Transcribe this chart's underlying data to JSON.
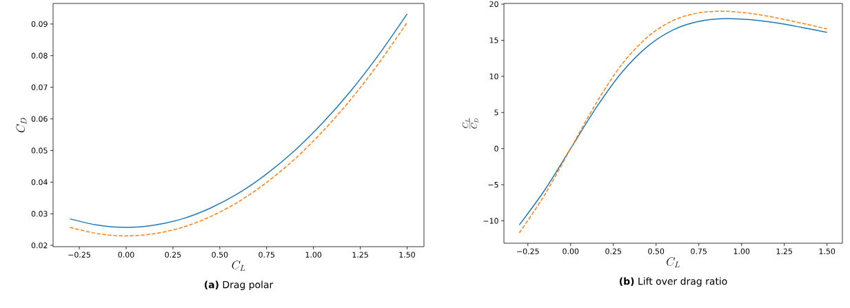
{
  "chart_data": [
    {
      "type": "line",
      "title": "**(a)** Drag polar",
      "xlabel": "C_L",
      "ylabel": "C_D",
      "xlim": [
        -0.39,
        1.59
      ],
      "ylim": [
        0.0196,
        0.0965
      ],
      "xticks": [
        {
          "value": -0.25,
          "label": "−0.25"
        },
        {
          "value": 0,
          "label": "0.00"
        },
        {
          "value": 0.25,
          "label": "0.25"
        },
        {
          "value": 0.5,
          "label": "0.50"
        },
        {
          "value": 0.75,
          "label": "0.75"
        },
        {
          "value": 1,
          "label": "1.00"
        },
        {
          "value": 1.25,
          "label": "1.25"
        },
        {
          "value": 1.5,
          "label": "1.50"
        }
      ],
      "yticks": [
        0.02,
        0.03,
        0.04,
        0.05,
        0.06,
        0.07,
        0.08,
        0.09
      ],
      "x": [
        -0.3,
        -0.15,
        0,
        0.15,
        0.3,
        0.45,
        0.6,
        0.75,
        0.9,
        1.05,
        1.2,
        1.35,
        1.5
      ],
      "series": [
        {
          "color": "#1f77b4",
          "line_style": "solid",
          "values": [
            0.0284,
            0.0264,
            0.0257,
            0.0264,
            0.0284,
            0.0318,
            0.0365,
            0.0426,
            0.05,
            0.0588,
            0.0689,
            0.0804,
            0.0932
          ]
        },
        {
          "color": "#ff7f0e",
          "line_style": "dashed",
          "values": [
            0.0257,
            0.0237,
            0.023,
            0.0237,
            0.0257,
            0.0291,
            0.0338,
            0.0399,
            0.0473,
            0.0561,
            0.0662,
            0.0777,
            0.0905
          ]
        }
      ]
    },
    {
      "type": "line",
      "title": "**(b)** Lift over drag ratio",
      "xlabel": "C_L",
      "ylabel": "\\frac{C_L}{C_D}",
      "xlim": [
        -0.39,
        1.59
      ],
      "ylim": [
        -13.1,
        20.1
      ],
      "xticks": [
        {
          "value": -0.25,
          "label": "−0.25"
        },
        {
          "value": 0,
          "label": "0.00"
        },
        {
          "value": 0.25,
          "label": "0.25"
        },
        {
          "value": 0.5,
          "label": "0.50"
        },
        {
          "value": 0.75,
          "label": "0.75"
        },
        {
          "value": 1,
          "label": "1.00"
        },
        {
          "value": 1.25,
          "label": "1.25"
        },
        {
          "value": 1.5,
          "label": "1.50"
        }
      ],
      "yticks": [
        {
          "value": -10,
          "label": "−10"
        },
        {
          "value": -5,
          "label": "−5"
        },
        0,
        5,
        10,
        15,
        20
      ],
      "x": [
        -0.3,
        -0.15,
        0,
        0.15,
        0.3,
        0.45,
        0.6,
        0.75,
        0.9,
        1.05,
        1.2,
        1.35,
        1.5
      ],
      "series": [
        {
          "color": "#1f77b4",
          "line_style": "solid",
          "values": [
            -10.56,
            -5.68,
            0,
            5.68,
            10.56,
            14.15,
            16.44,
            17.61,
            18.0,
            17.86,
            17.42,
            16.79,
            16.09
          ]
        },
        {
          "color": "#ff7f0e",
          "line_style": "dashed",
          "values": [
            -11.67,
            -6.33,
            0,
            6.33,
            11.67,
            15.46,
            17.75,
            18.8,
            19.03,
            18.72,
            18.13,
            17.37,
            16.57
          ]
        }
      ]
    }
  ]
}
